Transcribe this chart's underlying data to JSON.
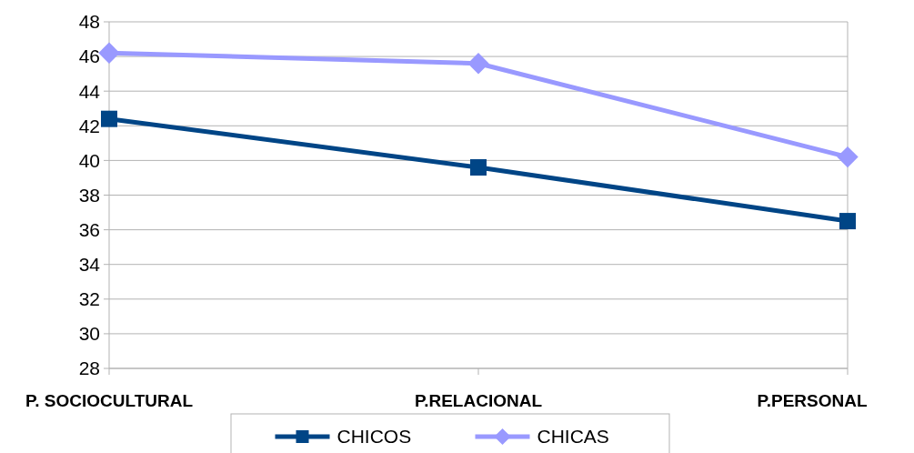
{
  "chart_data": {
    "type": "line",
    "categories": [
      "P. SOCIOCULTURAL",
      "P.RELACIONAL",
      "P.PERSONAL"
    ],
    "series": [
      {
        "name": "CHICOS",
        "color": "#004586",
        "values": [
          42.4,
          39.6,
          36.5
        ],
        "marker": "square"
      },
      {
        "name": "CHICAS",
        "color": "#9999ff",
        "values": [
          46.2,
          45.6,
          40.2
        ],
        "marker": "diamond"
      }
    ],
    "ylim": [
      28,
      48
    ],
    "yticks": [
      28,
      30,
      32,
      34,
      36,
      38,
      40,
      42,
      44,
      46,
      48
    ],
    "grid": "y",
    "legend": "bottom"
  }
}
